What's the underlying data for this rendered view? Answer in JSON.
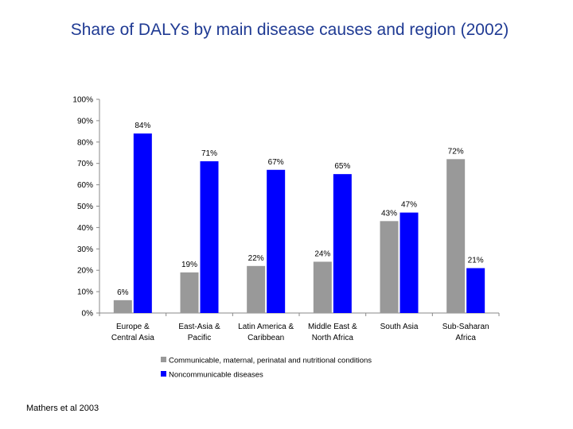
{
  "title": "Share of DALYs by main disease causes and region (2002)",
  "source": "Mathers et al 2003",
  "chart_data": {
    "type": "bar",
    "title": "Share of DALYs by main disease causes and region (2002)",
    "categories": [
      [
        "Europe &",
        "Central Asia"
      ],
      [
        "East-Asia &",
        "Pacific"
      ],
      [
        "Latin America &",
        "Caribbean"
      ],
      [
        "Middle East &",
        "North Africa"
      ],
      [
        "South Asia"
      ],
      [
        "Sub-Saharan",
        "Africa"
      ]
    ],
    "series": [
      {
        "name": "Communicable, maternal, perinatal and nutritional conditions",
        "color": "#999999",
        "values": [
          6,
          19,
          22,
          24,
          43,
          72
        ],
        "labels": [
          "6%",
          "19%",
          "22%",
          "24%",
          "43%",
          "72%"
        ]
      },
      {
        "name": "Noncommunicable diseases",
        "color": "#0000ff",
        "values": [
          84,
          71,
          67,
          65,
          47,
          21
        ],
        "labels": [
          "84%",
          "71%",
          "67%",
          "65%",
          "47%",
          "21%"
        ]
      }
    ],
    "ylim": [
      0,
      100
    ],
    "yticks": [
      0,
      10,
      20,
      30,
      40,
      50,
      60,
      70,
      80,
      90,
      100
    ],
    "ytick_labels": [
      "0%",
      "10%",
      "20%",
      "30%",
      "40%",
      "50%",
      "60%",
      "70%",
      "80%",
      "90%",
      "100%"
    ],
    "xlabel": "",
    "ylabel": "",
    "grid": false,
    "legend": "bottom"
  }
}
